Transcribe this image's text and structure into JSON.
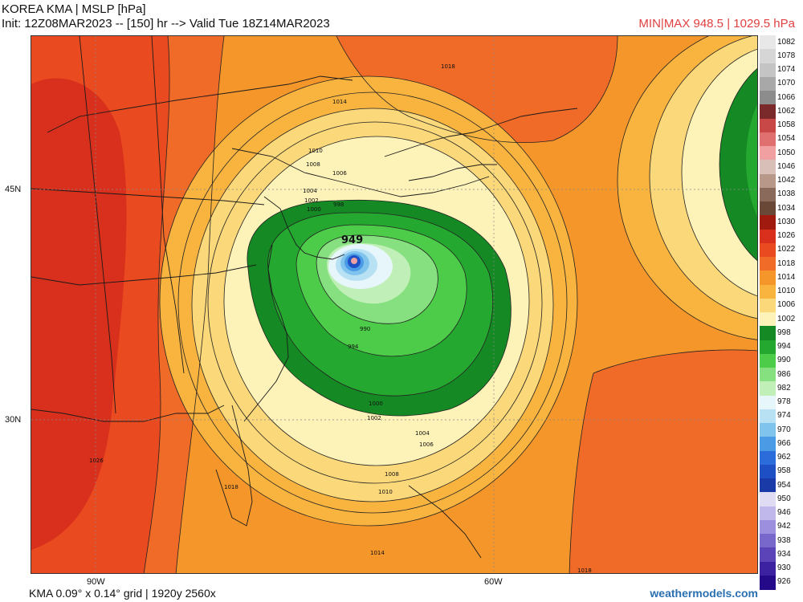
{
  "header": {
    "title": "KOREA KMA | MSLP [hPa]",
    "init_line": "Init: 12Z08MAR2023 -- [150] hr --> Valid Tue 18Z14MAR2023",
    "minmax": "MIN|MAX 948.5 | 1029.5 hPa"
  },
  "axes": {
    "lat_45": "45N",
    "lat_30": "30N",
    "lon_90": "90W",
    "lon_60": "60W"
  },
  "map": {
    "low_center_label": "949",
    "min_pressure_hpa": 948.5,
    "max_pressure_hpa": 1029.5,
    "isobar_labels": [
      "1018",
      "1014",
      "1010",
      "1008",
      "1006",
      "1004",
      "1002",
      "1000",
      "998",
      "990",
      "994",
      "1000",
      "1002",
      "1004",
      "1006",
      "1008",
      "1010",
      "1014",
      "1026",
      "1018",
      "1018"
    ]
  },
  "colorbar": {
    "levels": [
      {
        "v": "1082",
        "c": "#e8e8e8"
      },
      {
        "v": "1078",
        "c": "#d6d6d6"
      },
      {
        "v": "1074",
        "c": "#c4c4c4"
      },
      {
        "v": "1070",
        "c": "#a8a8a8"
      },
      {
        "v": "1066",
        "c": "#8c8c8c"
      },
      {
        "v": "1062",
        "c": "#7a2a2a"
      },
      {
        "v": "1058",
        "c": "#c84848"
      },
      {
        "v": "1054",
        "c": "#e07070"
      },
      {
        "v": "1050",
        "c": "#f0a0a0"
      },
      {
        "v": "1046",
        "c": "#d8c0b8"
      },
      {
        "v": "1042",
        "c": "#b89888"
      },
      {
        "v": "1038",
        "c": "#8a6a5a"
      },
      {
        "v": "1034",
        "c": "#6a4838"
      },
      {
        "v": "1030",
        "c": "#a01a10"
      },
      {
        "v": "1026",
        "c": "#d8301c"
      },
      {
        "v": "1022",
        "c": "#ea4a20"
      },
      {
        "v": "1018",
        "c": "#f06a28"
      },
      {
        "v": "1014",
        "c": "#f5962a"
      },
      {
        "v": "1010",
        "c": "#f9b440"
      },
      {
        "v": "1006",
        "c": "#fbd87a"
      },
      {
        "v": "1002",
        "c": "#fdf2b8"
      },
      {
        "v": "998",
        "c": "#158a24"
      },
      {
        "v": "994",
        "c": "#25a830"
      },
      {
        "v": "990",
        "c": "#4ccc48"
      },
      {
        "v": "986",
        "c": "#86e080"
      },
      {
        "v": "982",
        "c": "#c0f0b8"
      },
      {
        "v": "978",
        "c": "#e6f6fa"
      },
      {
        "v": "974",
        "c": "#b8e2f4"
      },
      {
        "v": "970",
        "c": "#80c4ee"
      },
      {
        "v": "966",
        "c": "#4a9ae6"
      },
      {
        "v": "962",
        "c": "#2c6cda"
      },
      {
        "v": "958",
        "c": "#1f4fc4"
      },
      {
        "v": "954",
        "c": "#1a3aa8"
      },
      {
        "v": "950",
        "c": "#e0dcf4"
      },
      {
        "v": "946",
        "c": "#c0b8ea"
      },
      {
        "v": "942",
        "c": "#9c90de"
      },
      {
        "v": "938",
        "c": "#7868cc"
      },
      {
        "v": "934",
        "c": "#5a44b8"
      },
      {
        "v": "930",
        "c": "#3c22a0"
      },
      {
        "v": "926",
        "c": "#240a88"
      }
    ]
  },
  "footer": {
    "grid_info": "KMA 0.09° x 0.14° grid | 1920y 2560x",
    "credit": "weathermodels.com"
  },
  "colors": {
    "minmax": "#e04040",
    "credit": "#2a6fb0"
  }
}
